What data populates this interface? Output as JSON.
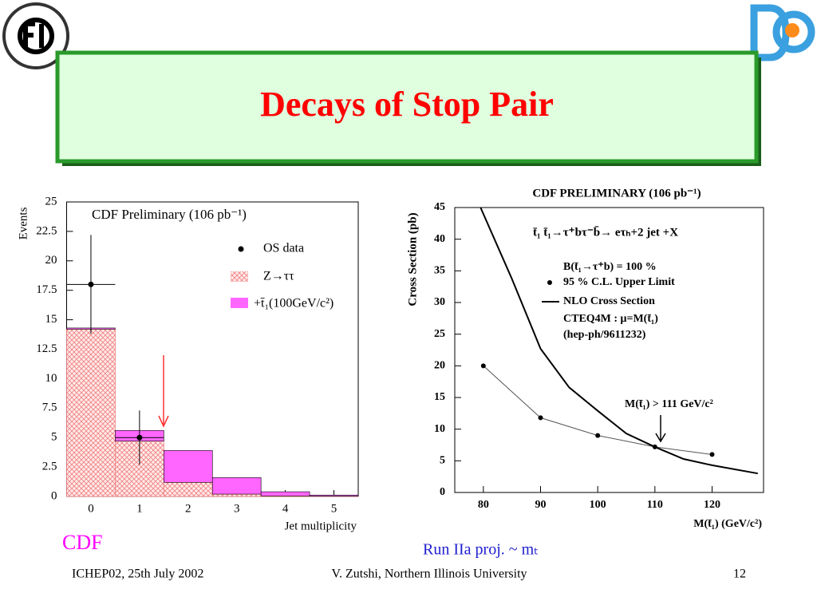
{
  "title": "Decays of Stop Pair",
  "captions": [
    "CDF",
    "Run IIa proj. ~ mₜ"
  ],
  "footer": {
    "left": "ICHEP02, 25th July 2002",
    "center": "V. Zutshi, Northern Illinois University",
    "right": "12"
  },
  "chart_data": [
    {
      "type": "histogram",
      "title": "CDF Preliminary (106 pb⁻¹)",
      "x_label": "Jet multiplicity",
      "y_label": "Events",
      "bins": [
        -0.5,
        0.5,
        1.5,
        2.5,
        3.5,
        4.5,
        5.5
      ],
      "xlim": [
        -0.5,
        5.5
      ],
      "xticks": [
        0,
        1,
        2,
        3,
        4,
        5
      ],
      "ylim": [
        0,
        25
      ],
      "yticks": [
        0,
        2.5,
        5,
        7.5,
        10,
        12.5,
        15,
        17.5,
        20,
        22.5,
        25
      ],
      "series": [
        {
          "name": "OS data",
          "color": "#000000",
          "x": [
            0,
            1
          ],
          "values": [
            18,
            5
          ],
          "errors": [
            4.2,
            2.3
          ],
          "xerrors": [
            0.5,
            0.5
          ]
        },
        {
          "name": "Z→ττ",
          "color": "#f08080",
          "values": [
            14.2,
            4.7,
            1.2,
            0.2,
            0.05,
            0.02
          ]
        },
        {
          "name": "+t̄₁(100GeV/c²)",
          "color": "#ff66ff",
          "values": [
            0.1,
            0.9,
            2.7,
            1.4,
            0.35,
            0.1
          ]
        }
      ]
    },
    {
      "type": "line",
      "title": "CDF PRELIMINARY (106 pb⁻¹)",
      "x_label": "M(t̄₁) (GeV/c²)",
      "y_label": "Cross Section (pb)",
      "xlim": [
        75,
        129
      ],
      "xticks": [
        80,
        90,
        100,
        110,
        120
      ],
      "ylim": [
        0,
        45
      ],
      "yticks": [
        0,
        5,
        10,
        15,
        20,
        25,
        30,
        35,
        40,
        45
      ],
      "annotations": [
        "t̄₁ t̄₁→τ⁺bτ⁻b̄→ eτₕ+2 jet +X",
        "B(t̄₁→τ⁺b) = 100 %",
        "CTEQ4M : μ=M(t̄₁)",
        "(hep-ph/9611232)",
        "M(t̄₁) > 111 GeV/c²"
      ],
      "series": [
        {
          "name": "95 % C.L. Upper Limit",
          "color": "#000000",
          "marker": true,
          "x": [
            80,
            90,
            100,
            110,
            120
          ],
          "values": [
            20,
            11.8,
            9,
            7.2,
            6
          ]
        },
        {
          "name": "NLO Cross Section",
          "color": "#000000",
          "marker": false,
          "x": [
            79.5,
            85,
            90,
            95,
            100,
            105,
            110,
            115,
            120,
            128
          ],
          "values": [
            45,
            33.7,
            22.7,
            16.6,
            12.9,
            9.3,
            7.2,
            5.3,
            4.3,
            3.0
          ]
        }
      ]
    }
  ]
}
